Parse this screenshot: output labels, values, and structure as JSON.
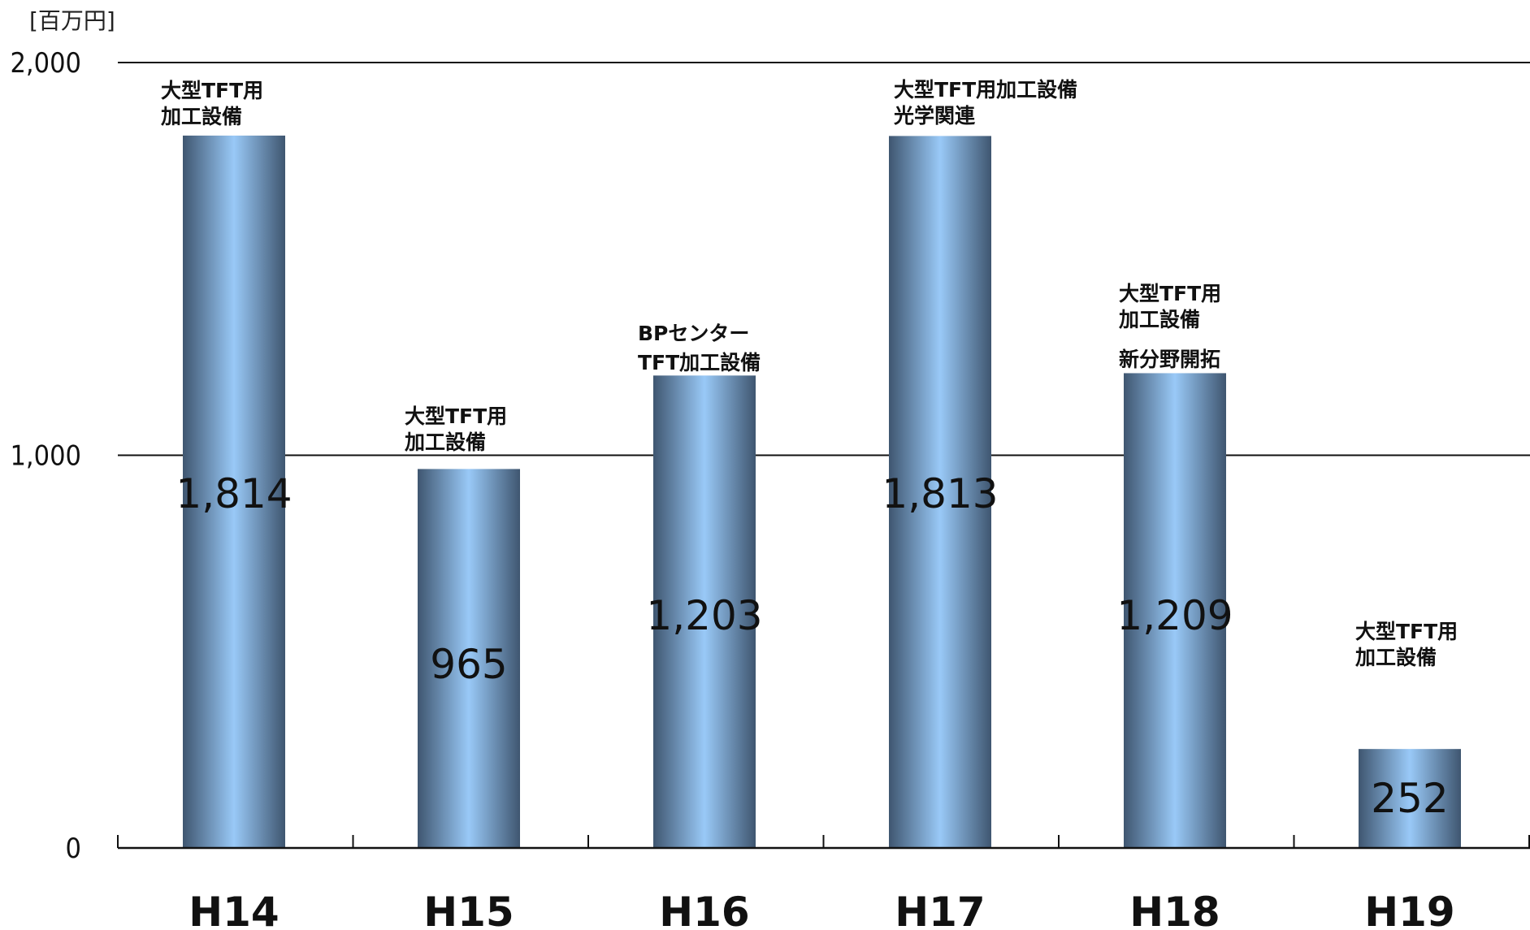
{
  "chart_data": {
    "type": "bar",
    "unit_label": "[百万円]",
    "categories": [
      "H14",
      "H15",
      "H16",
      "H17",
      "H18",
      "H19"
    ],
    "values": [
      1814,
      965,
      1203,
      1813,
      1209,
      252
    ],
    "value_labels": [
      "1,814",
      "965",
      "1,203",
      "1,813",
      "1,209",
      "252"
    ],
    "ylim": [
      0,
      2000
    ],
    "yticks": [
      0,
      1000,
      2000
    ],
    "ytick_labels": [
      "0",
      "1,000",
      "2,000"
    ],
    "grid": true,
    "annotations": [
      [
        "大型TFT用",
        "加工設備"
      ],
      [
        "大型TFT用",
        "加工設備"
      ],
      [
        "BPセンター",
        "TFT加工設備"
      ],
      [
        "大型TFT用加工設備",
        "光学関連"
      ],
      [
        "大型TFT用",
        "加工設備",
        "新分野開拓"
      ],
      [
        "大型TFT用",
        "加工設備"
      ]
    ]
  },
  "colors": {
    "bar_edge": "#3f5670",
    "bar_mid": "#99c9f7",
    "axis": "#111111"
  }
}
